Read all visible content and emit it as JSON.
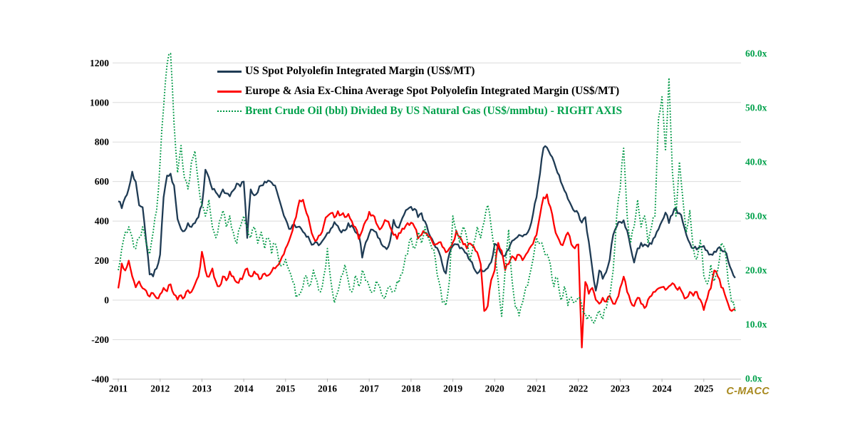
{
  "watermark": "C-MACC",
  "colors": {
    "us_line": "#1F3B54",
    "eu_line": "#FE0000",
    "ratio_line": "#009845",
    "right_axis_label": "#00A14B",
    "left_axis_label": "#000000",
    "grid": "#DBDBDB",
    "axis_line": "#C0C0C0",
    "tick_mark": "#B7B7B7",
    "watermark_color": "#A8891F",
    "background": "#FFFFFF"
  },
  "chart_data": {
    "type": "line",
    "title": "",
    "x_start_year": 2011,
    "points_per_year": 12,
    "x_tick_labels": [
      "2011",
      "2012",
      "2013",
      "2014",
      "2015",
      "2016",
      "2017",
      "2018",
      "2019",
      "2020",
      "2021",
      "2022",
      "2023",
      "2024",
      "2025"
    ],
    "left_axis": {
      "ticks": [
        -400,
        -200,
        0,
        200,
        400,
        600,
        800,
        1000,
        1200
      ],
      "range": [
        -400,
        1283
      ]
    },
    "right_axis": {
      "tick_values": [
        0,
        10,
        20,
        30,
        40,
        50,
        60
      ],
      "tick_labels": [
        "0.0x",
        "10.0x",
        "20.0x",
        "30.0x",
        "40.0x",
        "50.0x",
        "60.0x"
      ],
      "range": [
        0,
        60
      ]
    },
    "grid": "horizontal-only",
    "legend_position": "top-inside",
    "series": [
      {
        "name": "US Spot Polyolefin Integrated Margin (US$/MT)",
        "axis": "left",
        "color": "#1F3B54",
        "dash": "solid",
        "values": [
          500,
          465,
          520,
          565,
          650,
          600,
          480,
          470,
          300,
          130,
          120,
          160,
          230,
          520,
          630,
          640,
          580,
          410,
          360,
          350,
          390,
          370,
          390,
          420,
          480,
          660,
          620,
          560,
          545,
          520,
          560,
          540,
          525,
          555,
          590,
          575,
          600,
          315,
          560,
          530,
          545,
          580,
          600,
          605,
          595,
          580,
          520,
          460,
          410,
          360,
          380,
          368,
          372,
          345,
          320,
          300,
          282,
          292,
          285,
          310,
          340,
          362,
          395,
          375,
          342,
          352,
          390,
          378,
          345,
          332,
          215,
          292,
          335,
          356,
          344,
          310,
          272,
          258,
          300,
          406,
          368,
          392,
          432,
          460,
          472,
          462,
          420,
          440,
          398,
          342,
          310,
          268,
          245,
          180,
          135,
          235,
          275,
          282,
          262,
          256,
          236,
          200,
          162,
          135,
          158,
          146,
          162,
          192,
          285,
          268,
          232,
          224,
          256,
          300,
          312,
          330,
          322,
          332,
          362,
          435,
          520,
          640,
          770,
          772,
          735,
          700,
          645,
          598,
          555,
          512,
          478,
          448,
          438,
          392,
          420,
          295,
          160,
          48,
          150,
          108,
          142,
          205,
          330,
          372,
          396,
          404,
          352,
          266,
          190,
          262,
          290,
          282,
          270,
          284,
          320,
          358,
          400,
          443,
          390,
          432,
          466,
          440,
          392,
          330,
          288,
          262,
          256,
          270,
          274,
          250,
          232,
          246,
          262,
          254,
          248,
          198,
          150,
          112
        ]
      },
      {
        "name": "Europe & Asia Ex-China Average Spot Polyolefin Integrated Margin (US$/MT)",
        "axis": "left",
        "color": "#FE0000",
        "dash": "solid",
        "values": [
          60,
          185,
          150,
          200,
          120,
          65,
          95,
          60,
          48,
          18,
          35,
          10,
          30,
          62,
          45,
          80,
          28,
          2,
          25,
          15,
          50,
          42,
          80,
          120,
          245,
          150,
          118,
          160,
          95,
          70,
          120,
          100,
          145,
          120,
          90,
          110,
          130,
          160,
          120,
          145,
          130,
          110,
          135,
          125,
          145,
          160,
          180,
          220,
          262,
          300,
          352,
          420,
          505,
          508,
          440,
          380,
          318,
          305,
          330,
          382,
          425,
          440,
          418,
          450,
          432,
          420,
          436,
          400,
          370,
          310,
          352,
          400,
          447,
          430,
          390,
          357,
          382,
          400,
          370,
          330,
          310,
          340,
          360,
          390,
          392,
          370,
          312,
          330,
          340,
          320,
          300,
          282,
          292,
          270,
          242,
          262,
          292,
          350,
          320,
          282,
          262,
          286,
          270,
          242,
          182,
          -55,
          -30,
          102,
          152,
          290,
          250,
          152,
          182,
          222,
          202,
          230,
          202,
          232,
          262,
          285,
          330,
          430,
          520,
          535,
          470,
          382,
          322,
          282,
          302,
          342,
          282,
          262,
          282,
          -240,
          92,
          32,
          62,
          2,
          -18,
          12,
          -8,
          22,
          -18,
          2,
          62,
          119,
          42,
          -8,
          -30,
          12,
          -18,
          -40,
          2,
          22,
          42,
          60,
          66,
          52,
          70,
          86,
          62,
          66,
          32,
          12,
          42,
          22,
          42,
          2,
          -50,
          10,
          60,
          150,
          120,
          65,
          30,
          -20,
          -55,
          -45
        ]
      },
      {
        "name": "Brent Crude Oil (bbl) Divided By US Natural Gas (US$/mmbtu) - RIGHT AXIS",
        "axis": "right",
        "color": "#009845",
        "dash": "dotted",
        "values": [
          20,
          24,
          27,
          28,
          26,
          24,
          26,
          28,
          25,
          23,
          27,
          31,
          40,
          50,
          58,
          60,
          47,
          38,
          43,
          37,
          35,
          40,
          42,
          36,
          32,
          30,
          33,
          28,
          26,
          29,
          31,
          28,
          30,
          27,
          25,
          28,
          30,
          28,
          26,
          28,
          25,
          27,
          24,
          26,
          23,
          25,
          22,
          21,
          22,
          20,
          18,
          15,
          15.5,
          17,
          19,
          17,
          20,
          18,
          16,
          19,
          24,
          18,
          14,
          16,
          19,
          21,
          18,
          16,
          19,
          17,
          20,
          18,
          17,
          16,
          18,
          17,
          15,
          16,
          17,
          16,
          18,
          19,
          21,
          23,
          26,
          24,
          27,
          25,
          28,
          26,
          24,
          22,
          18,
          14,
          13.5,
          18,
          30,
          27,
          25,
          28,
          26,
          22,
          25,
          28,
          26,
          29,
          32,
          28,
          24,
          18,
          11.5,
          20,
          27.5,
          18,
          13,
          11.6,
          14,
          17,
          19,
          22,
          26,
          25,
          24,
          23,
          21,
          17,
          18.5,
          14.5,
          17,
          13.5,
          15,
          14,
          15,
          13.5,
          12,
          11.6,
          10.5,
          11,
          12.5,
          11,
          13,
          15,
          20,
          30,
          35,
          42.5,
          30,
          25,
          28,
          33,
          28,
          30,
          25,
          28,
          30,
          48,
          52,
          42,
          55.5,
          38,
          30,
          40,
          33,
          27,
          31,
          24,
          22,
          25.5,
          19,
          17.5,
          21,
          18,
          20,
          25,
          24,
          18,
          14,
          12.4
        ]
      }
    ]
  }
}
